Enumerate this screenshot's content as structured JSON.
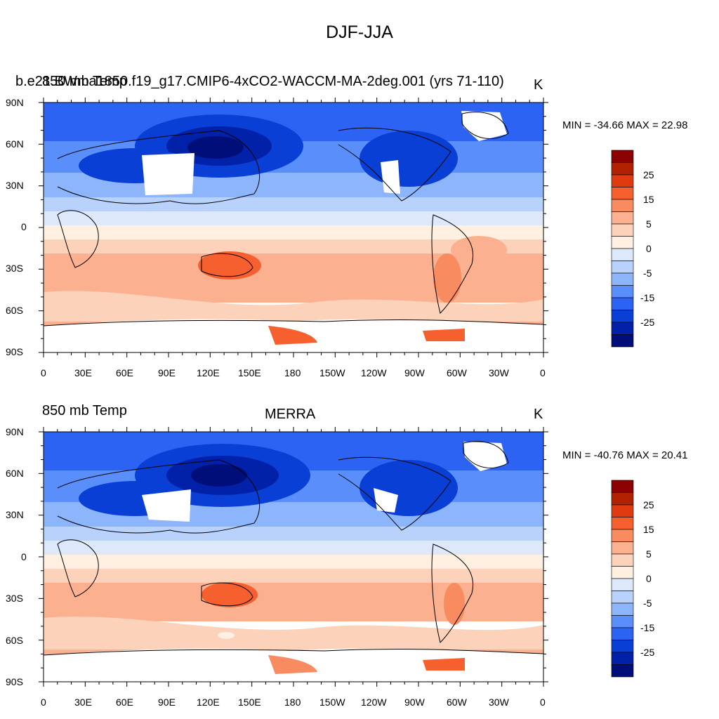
{
  "title": "DJF-JJA",
  "x_ticks": [
    "0",
    "30E",
    "60E",
    "90E",
    "120E",
    "150E",
    "180",
    "150W",
    "120W",
    "90W",
    "60W",
    "30W",
    "0"
  ],
  "y_ticks": [
    "90N",
    "60N",
    "30N",
    "0",
    "30S",
    "60S",
    "90S"
  ],
  "colorbar": {
    "labels": [
      "25",
      "15",
      "5",
      "0",
      "-5",
      "-15",
      "-25"
    ],
    "colors": [
      "#8b0000",
      "#b22200",
      "#e03a10",
      "#f5602e",
      "#f88b5f",
      "#fbb08f",
      "#fdd2ba",
      "#fff0e2",
      "#dde9fb",
      "#b8d2fb",
      "#8db5fb",
      "#5a8ffb",
      "#2d63f3",
      "#0a3fd6",
      "#0021a8",
      "#000e7a"
    ]
  },
  "panels": [
    {
      "left_text": "b.e21.BWma1850.f19_g17.CMIP6-4xCO2-WACCM-MA-2deg.001 (yrs 71-110)",
      "overlay_text": "850 mb Temp",
      "center_text": "",
      "right_text": "K",
      "minmax": "MIN = -34.66 MAX =  22.98"
    },
    {
      "left_text": "850 mb Temp",
      "overlay_text": "",
      "center_text": "MERRA",
      "right_text": "K",
      "minmax": "MIN = -40.76 MAX =  20.41"
    }
  ]
}
